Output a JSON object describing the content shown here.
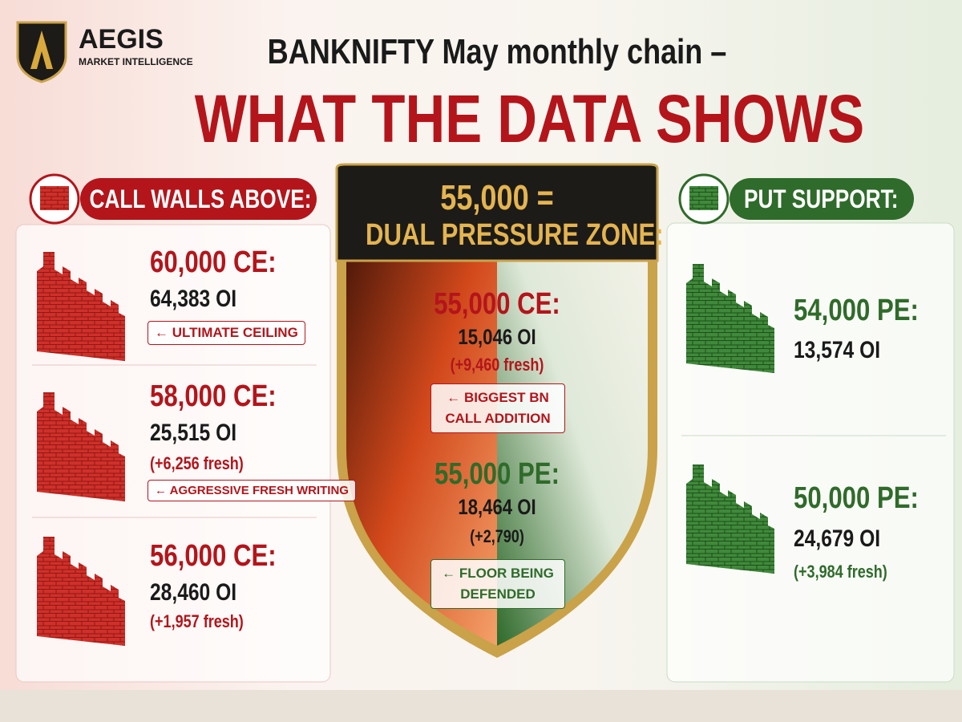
{
  "brand": {
    "name": "AEGIS",
    "tagline": "MARKET INTELLIGENCE"
  },
  "header": {
    "title": "BANKNIFTY May monthly chain –",
    "headline": "WHAT THE DATA SHOWS"
  },
  "calls": {
    "heading": "CALL WALLS ABOVE:",
    "items": [
      {
        "strike": "60,000 CE:",
        "oi": "64,383 OI",
        "note": "← ULTIMATE CEILING"
      },
      {
        "strike": "58,000 CE:",
        "oi": "25,515 OI",
        "change": "(+6,256 fresh)",
        "note": "← AGGRESSIVE FRESH WRITING"
      },
      {
        "strike": "56,000 CE:",
        "oi": "28,460 OI",
        "change": "(+1,957 fresh)"
      }
    ]
  },
  "zone": {
    "title": "55,000 =",
    "subtitle": "DUAL PRESSURE ZONE:",
    "call": {
      "strike": "55,000 CE:",
      "oi": "15,046 OI",
      "change": "(+9,460 fresh)",
      "note": "← BIGGEST BN CALL ADDITION"
    },
    "put": {
      "strike": "55,000 PE:",
      "oi": "18,464 OI",
      "change": "(+2,790)",
      "note": "← FLOOR BEING DEFENDED"
    }
  },
  "puts": {
    "heading": "PUT SUPPORT:",
    "items": [
      {
        "strike": "54,000 PE:",
        "oi": "13,574 OI"
      },
      {
        "strike": "50,000 PE:",
        "oi": "24,679 OI",
        "change": "(+3,984 fresh)"
      }
    ]
  }
}
